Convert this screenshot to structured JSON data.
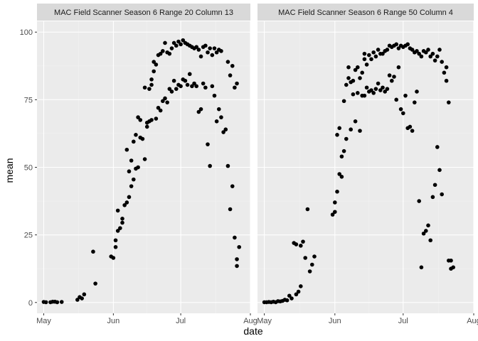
{
  "chart_data": {
    "type": "scatter",
    "xlabel": "date",
    "ylabel": "mean",
    "ylim": [
      -4,
      104
    ],
    "xlim": [
      "2018-04-28",
      "2018-08-01"
    ],
    "x_ticks": [
      {
        "date": "2018-05-01",
        "label": "May"
      },
      {
        "date": "2018-06-01",
        "label": "Jun"
      },
      {
        "date": "2018-07-01",
        "label": "Jul"
      },
      {
        "date": "2018-08-01",
        "label": "Aug"
      }
    ],
    "y_ticks": [
      0,
      25,
      50,
      75,
      100
    ],
    "grid": true,
    "point_color": "#000000",
    "panel_background": "#ebebeb",
    "strip_background": "#d9d9d9",
    "facets": [
      {
        "title": "MAC Field Scanner Season 6 Range 20 Column 13",
        "points": [
          [
            "2018-05-01",
            0.2
          ],
          [
            "2018-05-02",
            0.1
          ],
          [
            "2018-05-04",
            0.1
          ],
          [
            "2018-05-05",
            0.3
          ],
          [
            "2018-05-06",
            0.3
          ],
          [
            "2018-05-07",
            0.1
          ],
          [
            "2018-05-09",
            0.2
          ],
          [
            "2018-05-16",
            1.0
          ],
          [
            "2018-05-17",
            2.0
          ],
          [
            "2018-05-18",
            1.5
          ],
          [
            "2018-05-19",
            3.0
          ],
          [
            "2018-05-23",
            18.8
          ],
          [
            "2018-05-24",
            7.0
          ],
          [
            "2018-05-31",
            17.0
          ],
          [
            "2018-06-01",
            16.5
          ],
          [
            "2018-06-02",
            20.5
          ],
          [
            "2018-06-02",
            23.0
          ],
          [
            "2018-06-03",
            26.5
          ],
          [
            "2018-06-03",
            34.0
          ],
          [
            "2018-06-04",
            27.5
          ],
          [
            "2018-06-05",
            29.5
          ],
          [
            "2018-06-05",
            31.0
          ],
          [
            "2018-06-06",
            36.0
          ],
          [
            "2018-06-07",
            37.0
          ],
          [
            "2018-06-07",
            56.5
          ],
          [
            "2018-06-08",
            39.0
          ],
          [
            "2018-06-08",
            48.5
          ],
          [
            "2018-06-09",
            43.0
          ],
          [
            "2018-06-09",
            52.5
          ],
          [
            "2018-06-10",
            45.5
          ],
          [
            "2018-06-10",
            59.5
          ],
          [
            "2018-06-11",
            49.5
          ],
          [
            "2018-06-11",
            62.0
          ],
          [
            "2018-06-12",
            50.0
          ],
          [
            "2018-06-12",
            68.5
          ],
          [
            "2018-06-13",
            61.0
          ],
          [
            "2018-06-13",
            67.5
          ],
          [
            "2018-06-14",
            60.5
          ],
          [
            "2018-06-15",
            53.0
          ],
          [
            "2018-06-15",
            79.5
          ],
          [
            "2018-06-16",
            65.0
          ],
          [
            "2018-06-16",
            66.5
          ],
          [
            "2018-06-17",
            67.0
          ],
          [
            "2018-06-17",
            79.0
          ],
          [
            "2018-06-18",
            67.5
          ],
          [
            "2018-06-18",
            80.5
          ],
          [
            "2018-06-18",
            82.5
          ],
          [
            "2018-06-19",
            85.5
          ],
          [
            "2018-06-19",
            89.0
          ],
          [
            "2018-06-20",
            68.0
          ],
          [
            "2018-06-20",
            88.0
          ],
          [
            "2018-06-21",
            72.0
          ],
          [
            "2018-06-21",
            91.5
          ],
          [
            "2018-06-22",
            71.0
          ],
          [
            "2018-06-22",
            92.0
          ],
          [
            "2018-06-23",
            74.5
          ],
          [
            "2018-06-23",
            93.0
          ],
          [
            "2018-06-24",
            75.5
          ],
          [
            "2018-06-24",
            96.0
          ],
          [
            "2018-06-25",
            74.0
          ],
          [
            "2018-06-25",
            92.5
          ],
          [
            "2018-06-26",
            79.0
          ],
          [
            "2018-06-26",
            92.0
          ],
          [
            "2018-06-27",
            78.0
          ],
          [
            "2018-06-27",
            94.0
          ],
          [
            "2018-06-28",
            82.0
          ],
          [
            "2018-06-28",
            96.0
          ],
          [
            "2018-06-29",
            79.0
          ],
          [
            "2018-06-29",
            95.0
          ],
          [
            "2018-06-30",
            80.5
          ],
          [
            "2018-06-30",
            96.5
          ],
          [
            "2018-07-01",
            80.0
          ],
          [
            "2018-07-01",
            95.5
          ],
          [
            "2018-07-02",
            82.5
          ],
          [
            "2018-07-02",
            97.0
          ],
          [
            "2018-07-03",
            82.0
          ],
          [
            "2018-07-03",
            96.0
          ],
          [
            "2018-07-04",
            80.5
          ],
          [
            "2018-07-04",
            95.5
          ],
          [
            "2018-07-05",
            84.5
          ],
          [
            "2018-07-05",
            95.0
          ],
          [
            "2018-07-06",
            80.0
          ],
          [
            "2018-07-06",
            94.5
          ],
          [
            "2018-07-07",
            81.0
          ],
          [
            "2018-07-07",
            94.0
          ],
          [
            "2018-07-08",
            80.0
          ],
          [
            "2018-07-08",
            94.5
          ],
          [
            "2018-07-09",
            70.5
          ],
          [
            "2018-07-09",
            93.5
          ],
          [
            "2018-07-10",
            71.5
          ],
          [
            "2018-07-10",
            91.0
          ],
          [
            "2018-07-11",
            81.0
          ],
          [
            "2018-07-11",
            94.5
          ],
          [
            "2018-07-12",
            79.5
          ],
          [
            "2018-07-12",
            95.0
          ],
          [
            "2018-07-13",
            58.5
          ],
          [
            "2018-07-13",
            92.5
          ],
          [
            "2018-07-14",
            50.5
          ],
          [
            "2018-07-14",
            94.0
          ],
          [
            "2018-07-15",
            80.0
          ],
          [
            "2018-07-15",
            91.5
          ],
          [
            "2018-07-16",
            76.5
          ],
          [
            "2018-07-16",
            94.0
          ],
          [
            "2018-07-17",
            67.0
          ],
          [
            "2018-07-17",
            92.5
          ],
          [
            "2018-07-18",
            71.5
          ],
          [
            "2018-07-18",
            93.5
          ],
          [
            "2018-07-19",
            68.5
          ],
          [
            "2018-07-19",
            93.0
          ],
          [
            "2018-07-20",
            63.0
          ],
          [
            "2018-07-21",
            64.0
          ],
          [
            "2018-07-22",
            89.0
          ],
          [
            "2018-07-22",
            50.5
          ],
          [
            "2018-07-23",
            84.0
          ],
          [
            "2018-07-23",
            34.5
          ],
          [
            "2018-07-24",
            43.0
          ],
          [
            "2018-07-24",
            87.5
          ],
          [
            "2018-07-25",
            24.0
          ],
          [
            "2018-07-25",
            79.5
          ],
          [
            "2018-07-26",
            16.0
          ],
          [
            "2018-07-26",
            13.5
          ],
          [
            "2018-07-26",
            81.0
          ],
          [
            "2018-07-27",
            20.5
          ]
        ]
      },
      {
        "title": "MAC Field Scanner Season 6 Range 50 Column 4",
        "points": [
          [
            "2018-05-01",
            0.1
          ],
          [
            "2018-05-02",
            0.1
          ],
          [
            "2018-05-03",
            0.2
          ],
          [
            "2018-05-04",
            0.1
          ],
          [
            "2018-05-05",
            0.3
          ],
          [
            "2018-05-06",
            0.1
          ],
          [
            "2018-05-07",
            0.5
          ],
          [
            "2018-05-08",
            0.4
          ],
          [
            "2018-05-09",
            0.6
          ],
          [
            "2018-05-10",
            1.0
          ],
          [
            "2018-05-11",
            0.8
          ],
          [
            "2018-05-12",
            2.5
          ],
          [
            "2018-05-13",
            1.5
          ],
          [
            "2018-05-14",
            22.0
          ],
          [
            "2018-05-15",
            21.5
          ],
          [
            "2018-05-15",
            3.0
          ],
          [
            "2018-05-16",
            4.0
          ],
          [
            "2018-05-17",
            6.0
          ],
          [
            "2018-05-17",
            21.0
          ],
          [
            "2018-05-18",
            22.5
          ],
          [
            "2018-05-19",
            16.5
          ],
          [
            "2018-05-20",
            34.5
          ],
          [
            "2018-05-21",
            11.5
          ],
          [
            "2018-05-22",
            14.0
          ],
          [
            "2018-05-23",
            17.0
          ],
          [
            "2018-05-31",
            32.5
          ],
          [
            "2018-06-01",
            33.5
          ],
          [
            "2018-06-01",
            37.0
          ],
          [
            "2018-06-02",
            41.0
          ],
          [
            "2018-06-02",
            62.0
          ],
          [
            "2018-06-03",
            47.5
          ],
          [
            "2018-06-03",
            64.5
          ],
          [
            "2018-06-04",
            46.5
          ],
          [
            "2018-06-04",
            54.0
          ],
          [
            "2018-06-05",
            56.0
          ],
          [
            "2018-06-05",
            74.5
          ],
          [
            "2018-06-06",
            60.5
          ],
          [
            "2018-06-06",
            80.5
          ],
          [
            "2018-06-07",
            83.0
          ],
          [
            "2018-06-07",
            87.0
          ],
          [
            "2018-06-08",
            64.0
          ],
          [
            "2018-06-08",
            81.5
          ],
          [
            "2018-06-09",
            77.0
          ],
          [
            "2018-06-09",
            82.0
          ],
          [
            "2018-06-10",
            67.0
          ],
          [
            "2018-06-10",
            86.0
          ],
          [
            "2018-06-11",
            77.5
          ],
          [
            "2018-06-11",
            87.0
          ],
          [
            "2018-06-12",
            63.5
          ],
          [
            "2018-06-12",
            83.0
          ],
          [
            "2018-06-13",
            76.5
          ],
          [
            "2018-06-13",
            85.0
          ],
          [
            "2018-06-14",
            76.5
          ],
          [
            "2018-06-14",
            90.0
          ],
          [
            "2018-06-14",
            92.0
          ],
          [
            "2018-06-15",
            79.5
          ],
          [
            "2018-06-15",
            88.0
          ],
          [
            "2018-06-16",
            78.0
          ],
          [
            "2018-06-16",
            91.5
          ],
          [
            "2018-06-17",
            78.5
          ],
          [
            "2018-06-17",
            90.0
          ],
          [
            "2018-06-18",
            77.5
          ],
          [
            "2018-06-18",
            92.5
          ],
          [
            "2018-06-19",
            79.0
          ],
          [
            "2018-06-19",
            91.0
          ],
          [
            "2018-06-20",
            81.0
          ],
          [
            "2018-06-20",
            93.5
          ],
          [
            "2018-06-21",
            78.5
          ],
          [
            "2018-06-21",
            92.0
          ],
          [
            "2018-06-22",
            79.5
          ],
          [
            "2018-06-22",
            92.0
          ],
          [
            "2018-06-23",
            78.0
          ],
          [
            "2018-06-23",
            93.0
          ],
          [
            "2018-06-24",
            79.0
          ],
          [
            "2018-06-24",
            93.5
          ],
          [
            "2018-06-25",
            84.0
          ],
          [
            "2018-06-25",
            95.0
          ],
          [
            "2018-06-26",
            82.0
          ],
          [
            "2018-06-26",
            94.5
          ],
          [
            "2018-06-27",
            83.5
          ],
          [
            "2018-06-27",
            95.0
          ],
          [
            "2018-06-28",
            75.0
          ],
          [
            "2018-06-28",
            95.5
          ],
          [
            "2018-06-29",
            87.0
          ],
          [
            "2018-06-29",
            94.0
          ],
          [
            "2018-06-30",
            71.5
          ],
          [
            "2018-06-30",
            95.0
          ],
          [
            "2018-07-01",
            70.0
          ],
          [
            "2018-07-01",
            94.5
          ],
          [
            "2018-07-02",
            76.5
          ],
          [
            "2018-07-02",
            95.0
          ],
          [
            "2018-07-03",
            64.5
          ],
          [
            "2018-07-03",
            95.5
          ],
          [
            "2018-07-04",
            65.0
          ],
          [
            "2018-07-04",
            94.0
          ],
          [
            "2018-07-05",
            63.5
          ],
          [
            "2018-07-05",
            93.5
          ],
          [
            "2018-07-06",
            74.0
          ],
          [
            "2018-07-06",
            92.5
          ],
          [
            "2018-07-07",
            78.0
          ],
          [
            "2018-07-07",
            93.0
          ],
          [
            "2018-07-08",
            37.5
          ],
          [
            "2018-07-08",
            92.0
          ],
          [
            "2018-07-09",
            13.0
          ],
          [
            "2018-07-09",
            91.0
          ],
          [
            "2018-07-10",
            25.5
          ],
          [
            "2018-07-10",
            93.0
          ],
          [
            "2018-07-11",
            26.5
          ],
          [
            "2018-07-11",
            92.5
          ],
          [
            "2018-07-12",
            28.5
          ],
          [
            "2018-07-12",
            93.5
          ],
          [
            "2018-07-13",
            23.0
          ],
          [
            "2018-07-13",
            91.0
          ],
          [
            "2018-07-14",
            39.0
          ],
          [
            "2018-07-14",
            92.0
          ],
          [
            "2018-07-15",
            43.5
          ],
          [
            "2018-07-15",
            89.5
          ],
          [
            "2018-07-16",
            57.5
          ],
          [
            "2018-07-16",
            91.0
          ],
          [
            "2018-07-17",
            49.0
          ],
          [
            "2018-07-17",
            93.5
          ],
          [
            "2018-07-18",
            40.0
          ],
          [
            "2018-07-18",
            89.0
          ],
          [
            "2018-07-19",
            85.0
          ],
          [
            "2018-07-20",
            82.0
          ],
          [
            "2018-07-20",
            87.0
          ],
          [
            "2018-07-21",
            15.5
          ],
          [
            "2018-07-21",
            74.0
          ],
          [
            "2018-07-22",
            12.5
          ],
          [
            "2018-07-22",
            15.5
          ],
          [
            "2018-07-23",
            13.0
          ]
        ]
      }
    ]
  }
}
